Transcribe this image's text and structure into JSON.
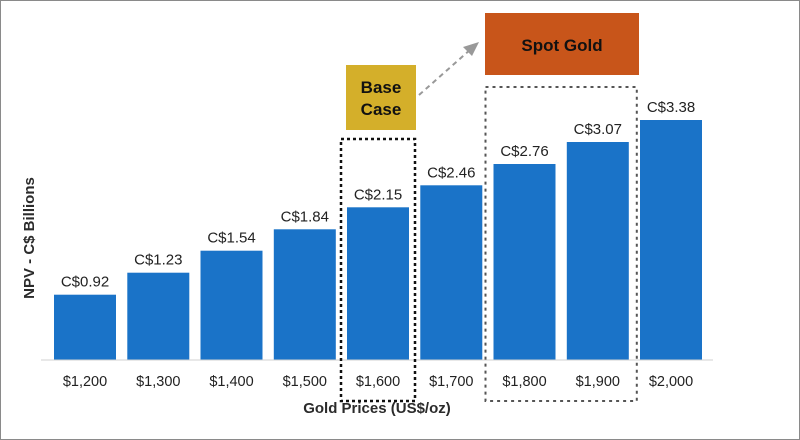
{
  "chart_data": {
    "type": "bar",
    "categories": [
      "$1,200",
      "$1,300",
      "$1,400",
      "$1,500",
      "$1,600",
      "$1,700",
      "$1,800",
      "$1,900",
      "$2,000"
    ],
    "values": [
      0.92,
      1.23,
      1.54,
      1.84,
      2.15,
      2.46,
      2.76,
      3.07,
      3.38
    ],
    "data_labels": [
      "C$0.92",
      "C$1.23",
      "C$1.54",
      "C$1.84",
      "C$2.15",
      "C$2.46",
      "C$2.76",
      "C$3.07",
      "C$3.38"
    ],
    "title": "",
    "xlabel": "Gold Prices (US$/oz)",
    "ylabel": "NPV - C$ Billions",
    "ylim": [
      0,
      3.38
    ],
    "grid": false,
    "bar_color": "#1a73c8",
    "annotations": [
      {
        "text_lines": [
          "Base",
          "Case"
        ],
        "highlights_category": "$1,600",
        "box_color": "#d4af2a"
      },
      {
        "text_lines": [
          "Spot Gold"
        ],
        "highlights_categories": [
          "$1,800",
          "$1,900"
        ],
        "box_color": "#c8551a"
      }
    ]
  }
}
